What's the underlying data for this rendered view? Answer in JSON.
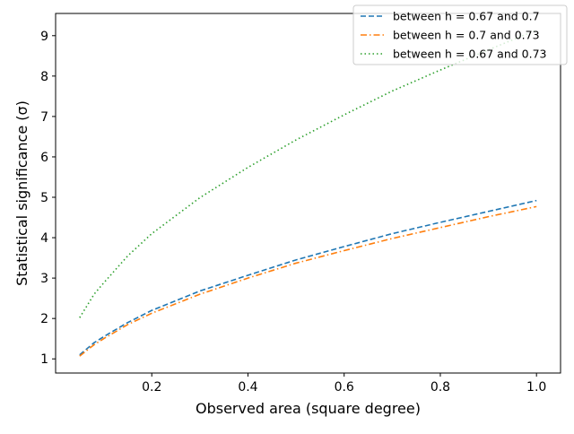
{
  "chart_data": {
    "type": "line",
    "title": "",
    "xlabel": "Observed area (square degree)",
    "ylabel": "Statistical significance (σ)",
    "xlim": [
      0.0,
      1.05
    ],
    "ylim": [
      0.65,
      9.55
    ],
    "x_ticks": [
      0.2,
      0.4,
      0.6,
      0.8,
      1.0
    ],
    "x_tick_labels": [
      "0.2",
      "0.4",
      "0.6",
      "0.8",
      "1.0"
    ],
    "y_ticks": [
      1,
      2,
      3,
      4,
      5,
      6,
      7,
      8,
      9
    ],
    "y_tick_labels": [
      "1",
      "2",
      "3",
      "4",
      "5",
      "6",
      "7",
      "8",
      "9"
    ],
    "grid": false,
    "legend_position": "top-right",
    "x": [
      0.05,
      0.08,
      0.1,
      0.15,
      0.2,
      0.3,
      0.4,
      0.5,
      0.6,
      0.7,
      0.8,
      0.9,
      1.0
    ],
    "series": [
      {
        "name": "between h = 0.67 and 0.7",
        "color": "#1f77b4",
        "style": "dashed",
        "values": [
          1.1,
          1.4,
          1.55,
          1.9,
          2.2,
          2.68,
          3.07,
          3.45,
          3.78,
          4.1,
          4.38,
          4.65,
          4.92
        ]
      },
      {
        "name": "between h = 0.7 and 0.73",
        "color": "#ff7f0e",
        "style": "dashdot",
        "values": [
          1.07,
          1.35,
          1.5,
          1.85,
          2.13,
          2.6,
          3.0,
          3.37,
          3.68,
          3.98,
          4.25,
          4.52,
          4.77
        ]
      },
      {
        "name": "between h = 0.67 and 0.73",
        "color": "#2ca02c",
        "style": "dotted",
        "values": [
          2.02,
          2.6,
          2.88,
          3.55,
          4.1,
          4.99,
          5.74,
          6.42,
          7.04,
          7.63,
          8.15,
          8.65,
          9.14
        ]
      }
    ]
  }
}
